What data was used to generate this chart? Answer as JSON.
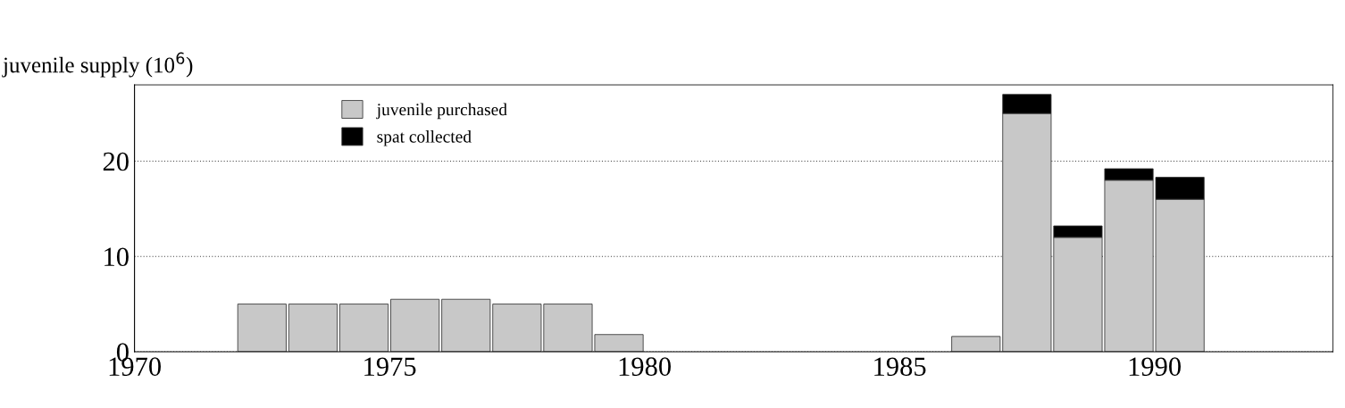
{
  "chart_data": {
    "type": "bar",
    "stacked": true,
    "ylabel": "juvenile supply (10$^{6}$)",
    "x": [
      1972.5,
      1973.5,
      1974.5,
      1975.5,
      1976.5,
      1977.5,
      1978.5,
      1979.5,
      1986.5,
      1987.5,
      1988.5,
      1989.5,
      1990.5
    ],
    "series": [
      {
        "name": "juvenile purchased",
        "color": "#c8c8c8",
        "values": [
          5,
          5,
          5,
          5.5,
          5.5,
          5,
          5,
          1.8,
          1.6,
          25,
          12,
          18,
          16
        ]
      },
      {
        "name": "spat collected",
        "color": "#000000",
        "values": [
          null,
          null,
          null,
          null,
          null,
          null,
          null,
          null,
          null,
          2,
          1.2,
          1.2,
          2.3
        ]
      }
    ],
    "xlim": [
      1970,
      1993.5
    ],
    "xticks": [
      1970,
      1975,
      1980,
      1985,
      1990
    ],
    "ylim": [
      0,
      28
    ],
    "yticks": [
      0,
      10,
      20
    ],
    "grid": "y",
    "legend": "top left"
  }
}
